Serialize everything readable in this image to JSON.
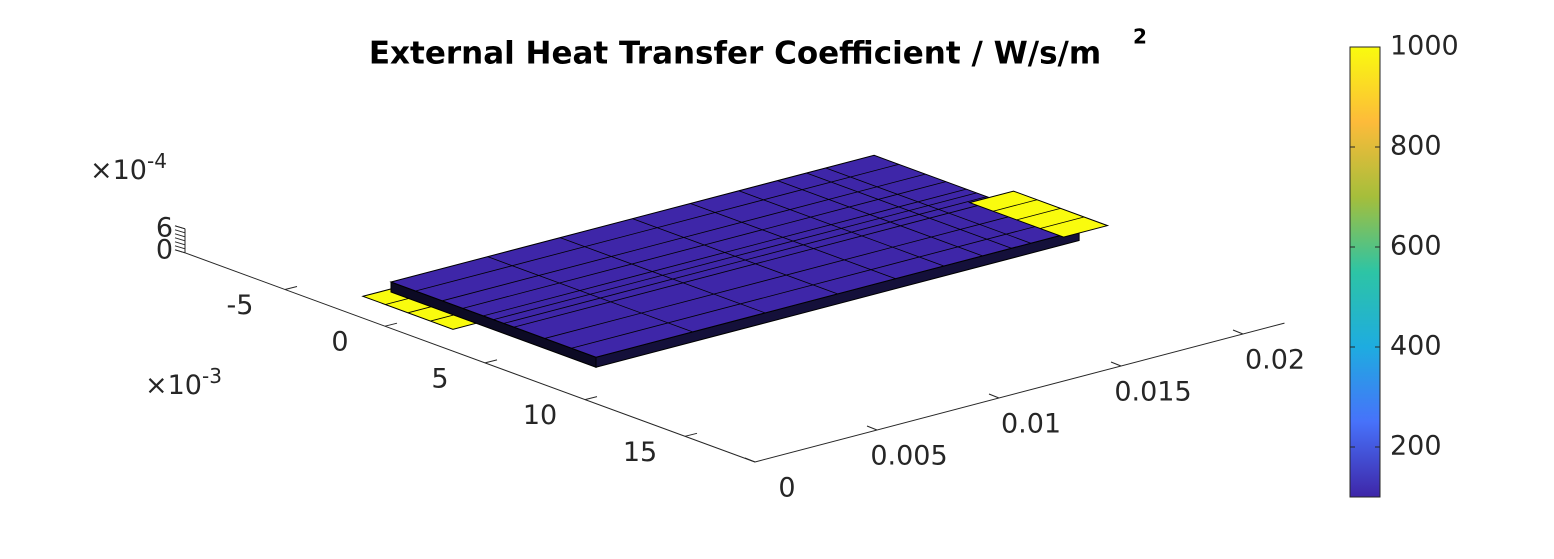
{
  "chart_data": {
    "type": "surface3d",
    "title": "External Heat Transfer Coefficient / W/s/m",
    "title_sup": "2",
    "values": [
      100,
      1000,
      1000
    ],
    "xlim": [
      0,
      0.0217
    ],
    "xticks": [
      0,
      0.005,
      0.01,
      0.015,
      0.02
    ],
    "ylim": [
      -0.01,
      0.0185
    ],
    "yticks": [
      {
        "value": -0.005,
        "label": "-5"
      },
      {
        "value": 0,
        "label": "0"
      },
      {
        "value": 0.005,
        "label": "5"
      },
      {
        "value": 0.01,
        "label": "10"
      },
      {
        "value": 0.015,
        "label": "15"
      }
    ],
    "y_exponent": {
      "base": "×10",
      "power": "-3"
    },
    "zlim": [
      0,
      0.0006
    ],
    "zticks": [
      0,
      {
        "value": 0.0006,
        "label": "6"
      }
    ],
    "z_exponent": {
      "base": "×10",
      "power": "-4"
    },
    "clim": [
      100,
      1000
    ],
    "cticks": [
      200,
      400,
      600,
      800,
      1000
    ],
    "colormap": [
      "#3e26a8",
      "#4772fa",
      "#1eace0",
      "#2dc4a5",
      "#a5be3b",
      "#fdbb3a",
      "#f9fb0e"
    ]
  }
}
